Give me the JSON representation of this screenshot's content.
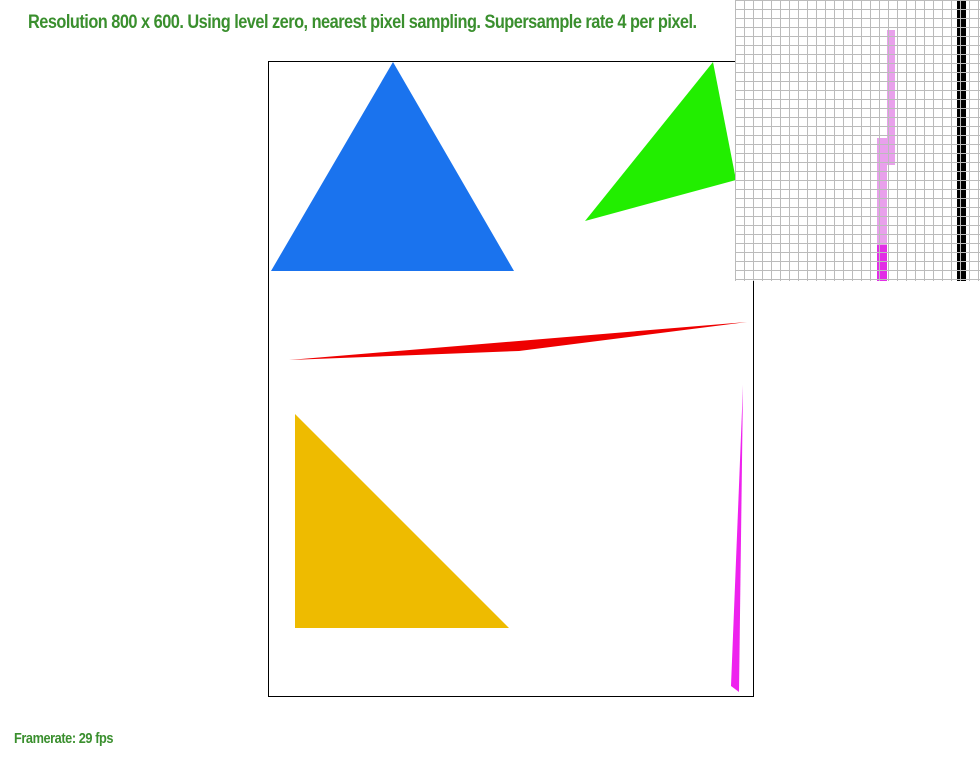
{
  "status": {
    "text": "Resolution 800 x 600. Using level zero, nearest pixel sampling. Supersample rate 4 per pixel.",
    "color": "#3a8f2e"
  },
  "framerate": {
    "text": "Framerate: 29 fps",
    "color": "#3a8f2e"
  },
  "canvas": {
    "background": "#ffffff",
    "border_color": "#000000",
    "shapes": [
      {
        "name": "blue-triangle",
        "color": "#1a73ee"
      },
      {
        "name": "green-triangle",
        "color": "#22ee00"
      },
      {
        "name": "red-sliver-triangle",
        "color": "#ee0000"
      },
      {
        "name": "yellow-triangle",
        "color": "#eebb00"
      },
      {
        "name": "magenta-sliver-triangle",
        "color": "#ee22ee"
      }
    ]
  },
  "zoom": {
    "grid_color": "#bbbbbb",
    "pixel_colors": {
      "light_magenta": "#e9a0ec",
      "magenta": "#e22ee6",
      "black": "#000000"
    }
  }
}
